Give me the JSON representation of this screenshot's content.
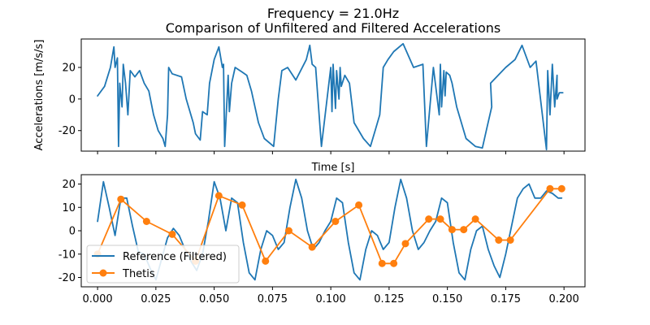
{
  "figure": {
    "suptitle": "Frequency = 21.0Hz",
    "title": "Comparison of Unfiltered and Filtered Accelerations"
  },
  "chart_data": [
    {
      "type": "line",
      "panel": "top",
      "title": "Comparison of Unfiltered and Filtered Accelerations",
      "xlabel": "Time [s]",
      "ylabel": "Accelerations [m/s/s]",
      "xlim": [
        -0.007,
        0.209
      ],
      "ylim": [
        -33,
        38
      ],
      "yticks": [
        -20,
        0,
        20
      ],
      "xticks_shown": false,
      "grid": false,
      "series": [
        {
          "name": "Unfiltered",
          "color": "#1f77b4",
          "x": [
            0.0,
            0.003,
            0.0055,
            0.007,
            0.0075,
            0.0085,
            0.009,
            0.0095,
            0.0105,
            0.011,
            0.012,
            0.013,
            0.014,
            0.016,
            0.018,
            0.02,
            0.022,
            0.024,
            0.026,
            0.028,
            0.029,
            0.03,
            0.0305,
            0.032,
            0.036,
            0.038,
            0.041,
            0.042,
            0.044,
            0.045,
            0.047,
            0.048,
            0.05,
            0.052,
            0.0535,
            0.054,
            0.0545,
            0.0555,
            0.056,
            0.0565,
            0.0575,
            0.059,
            0.062,
            0.064,
            0.066,
            0.069,
            0.0715,
            0.0755,
            0.0775,
            0.079,
            0.0815,
            0.085,
            0.0895,
            0.091,
            0.092,
            0.0935,
            0.096,
            0.1,
            0.1005,
            0.101,
            0.102,
            0.1025,
            0.1035,
            0.104,
            0.1045,
            0.106,
            0.108,
            0.11,
            0.114,
            0.117,
            0.119,
            0.121,
            0.1225,
            0.1245,
            0.127,
            0.131,
            0.1355,
            0.1395,
            0.141,
            0.144,
            0.1465,
            0.147,
            0.1475,
            0.1485,
            0.149,
            0.1495,
            0.151,
            0.152,
            0.154,
            0.158,
            0.162,
            0.165,
            0.167,
            0.169,
            0.1685,
            0.175,
            0.179,
            0.182,
            0.1855,
            0.188,
            0.1925,
            0.193,
            0.194,
            0.195,
            0.196,
            0.197,
            0.197,
            0.198,
            0.1995
          ],
          "y": [
            2,
            8,
            20,
            33,
            20,
            26,
            -30,
            10,
            -5,
            22,
            10,
            -10,
            18,
            14,
            18,
            10,
            5,
            -10,
            -20,
            -25,
            -30,
            -10,
            20,
            16,
            14,
            0,
            -15,
            -22,
            -26,
            -8,
            -10,
            10,
            25,
            33,
            20,
            22,
            -30,
            0,
            15,
            -8,
            10,
            20,
            17,
            15,
            5,
            -15,
            -25,
            -30,
            0,
            18,
            20,
            12,
            25,
            34,
            22,
            20,
            -30,
            20,
            -8,
            22,
            -6,
            18,
            0,
            20,
            8,
            15,
            10,
            -15,
            -25,
            -30,
            -20,
            -10,
            20,
            25,
            30,
            35,
            20,
            22,
            -30,
            20,
            -10,
            22,
            -5,
            18,
            2,
            17,
            15,
            10,
            -5,
            -25,
            -30,
            -31,
            -18,
            -5,
            10,
            20,
            25,
            34,
            20,
            24,
            -32,
            18,
            -10,
            22,
            -5,
            15,
            0,
            4,
            4
          ]
        }
      ]
    },
    {
      "type": "line",
      "panel": "bottom",
      "xlabel": "",
      "ylabel": "",
      "xlim": [
        -0.007,
        0.209
      ],
      "ylim": [
        -24,
        24
      ],
      "xticks": [
        0.0,
        0.025,
        0.05,
        0.075,
        0.1,
        0.125,
        0.15,
        0.175,
        0.2
      ],
      "xtick_labels": [
        "0.000",
        "0.025",
        "0.050",
        "0.075",
        "0.100",
        "0.125",
        "0.150",
        "0.175",
        "0.200"
      ],
      "yticks": [
        -20,
        -10,
        0,
        10,
        20
      ],
      "grid": false,
      "legend_position": "lower-left",
      "series": [
        {
          "name": "Reference (Filtered)",
          "color": "#1f77b4",
          "marker": "none",
          "x": [
            0.0,
            0.0025,
            0.005,
            0.0075,
            0.01,
            0.0125,
            0.015,
            0.0175,
            0.02,
            0.0225,
            0.025,
            0.0275,
            0.03,
            0.0325,
            0.035,
            0.0375,
            0.04,
            0.0425,
            0.045,
            0.0475,
            0.05,
            0.0525,
            0.055,
            0.0575,
            0.06,
            0.0625,
            0.065,
            0.0675,
            0.07,
            0.0725,
            0.075,
            0.0775,
            0.08,
            0.0825,
            0.085,
            0.0875,
            0.09,
            0.0925,
            0.095,
            0.0975,
            0.1,
            0.1025,
            0.105,
            0.1075,
            0.11,
            0.1125,
            0.115,
            0.1175,
            0.12,
            0.1225,
            0.125,
            0.1275,
            0.13,
            0.1325,
            0.135,
            0.1375,
            0.14,
            0.1425,
            0.145,
            0.1475,
            0.15,
            0.1525,
            0.155,
            0.1575,
            0.16,
            0.1625,
            0.165,
            0.1675,
            0.17,
            0.1725,
            0.175,
            0.1775,
            0.18,
            0.1825,
            0.185,
            0.1875,
            0.19,
            0.1925,
            0.195,
            0.1975,
            0.199
          ],
          "y": [
            4,
            21,
            10,
            -2,
            14,
            14,
            2,
            -9,
            -10,
            -16,
            -21,
            -12,
            -3,
            1,
            -2,
            -8,
            -13,
            -17,
            -10,
            4,
            21,
            14,
            0,
            14,
            12,
            -5,
            -18,
            -21,
            -8,
            0,
            -2,
            -8,
            -5,
            10,
            22,
            14,
            0,
            -8,
            -5,
            0,
            4,
            14,
            12,
            -5,
            -18,
            -21,
            -8,
            0,
            -2,
            -8,
            -5,
            10,
            22,
            14,
            0,
            -8,
            -5,
            0,
            4,
            14,
            12,
            -5,
            -18,
            -21,
            -8,
            0,
            2,
            -8,
            -15,
            -20,
            -10,
            2,
            14,
            18,
            20,
            14,
            14,
            17,
            16,
            14,
            14
          ]
        },
        {
          "name": "Thetis",
          "color": "#ff7f0e",
          "marker": "circle",
          "x": [
            0.0,
            0.01,
            0.021,
            0.032,
            0.042,
            0.052,
            0.062,
            0.072,
            0.082,
            0.092,
            0.102,
            0.112,
            0.122,
            0.127,
            0.132,
            0.142,
            0.147,
            0.152,
            0.157,
            0.162,
            0.172,
            0.177,
            0.194,
            0.199
          ],
          "y": [
            -10,
            13.5,
            4,
            -1.5,
            -13,
            15,
            11,
            -13,
            0,
            -7,
            4,
            11,
            -14,
            -14,
            -5.5,
            5,
            5,
            0.5,
            0.5,
            5,
            -4,
            -4,
            18,
            18
          ]
        }
      ]
    }
  ]
}
